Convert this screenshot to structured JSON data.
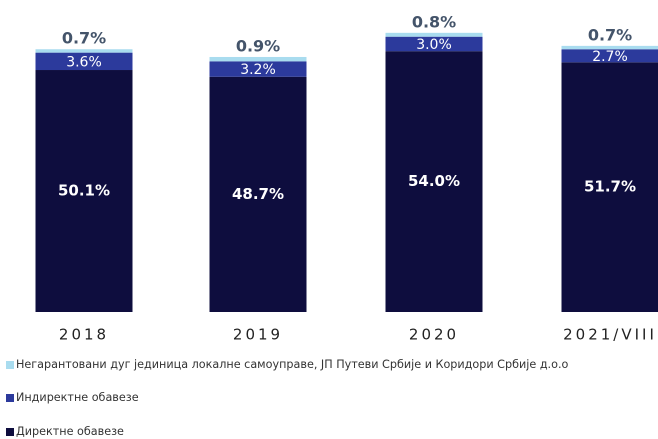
{
  "chart_data": {
    "type": "stacked-bar",
    "categories": [
      "2018",
      "2019",
      "2020",
      "2021/VIII"
    ],
    "series": [
      {
        "name": "Негарантовани дуг јединица локалне самоуправе, ЈП Путеви Србије и Коридори Србије д.о.о",
        "color": "#a9dcef",
        "values": [
          0.7,
          0.9,
          0.8,
          0.7
        ],
        "value_labels": [
          "0.7%",
          "0.9%",
          "0.8%",
          "0.7%"
        ]
      },
      {
        "name": "Индиректне обавезе",
        "color": "#2c3a9c",
        "values": [
          3.6,
          3.2,
          3.0,
          2.7
        ],
        "value_labels": [
          "3.6%",
          "3.2%",
          "3.0%",
          "2.7%"
        ]
      },
      {
        "name": "Директне обавезе",
        "color": "#0e0d3e",
        "values": [
          50.1,
          48.7,
          54.0,
          51.7
        ],
        "value_labels": [
          "50.1%",
          "48.7%",
          "54.0%",
          "51.7%"
        ]
      }
    ]
  }
}
